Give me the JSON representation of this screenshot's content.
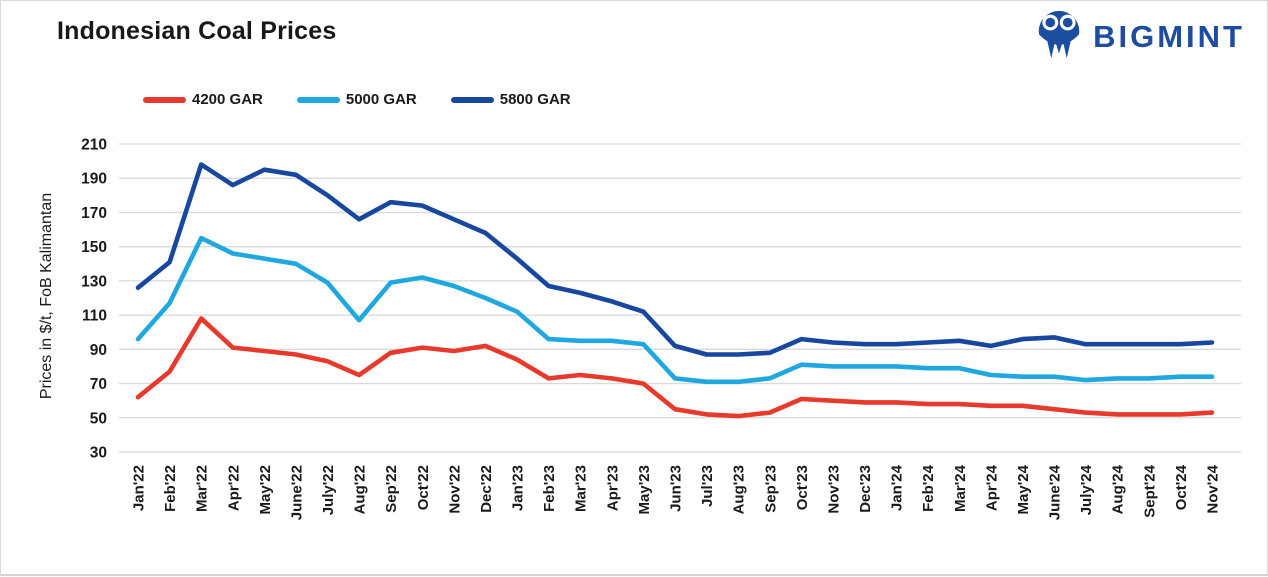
{
  "header": {
    "brand_label": "BIGMINT"
  },
  "colors": {
    "brand_blue": "#1C4DA1",
    "gridline": "#d9d9d9",
    "text": "#1a1a1a"
  },
  "chart_data": {
    "type": "line",
    "title": "Indonesian Coal Prices",
    "xlabel": "",
    "ylabel": "Prices in $/t, FoB Kalimantan",
    "ylim": [
      30,
      210
    ],
    "yticks": [
      210,
      190,
      170,
      150,
      130,
      110,
      90,
      70,
      50,
      30
    ],
    "grid": "horizontal",
    "legend_position": "top-left",
    "categories": [
      "Jan'22",
      "Feb'22",
      "Mar'22",
      "Apr'22",
      "May'22",
      "June'22",
      "July'22",
      "Aug'22",
      "Sep'22",
      "Oct'22",
      "Nov'22",
      "Dec'22",
      "Jan'23",
      "Feb'23",
      "Mar'23",
      "Apr'23",
      "May'23",
      "Jun'23",
      "Jul'23",
      "Aug'23",
      "Sep'23",
      "Oct'23",
      "Nov'23",
      "Dec'23",
      "Jan'24",
      "Feb'24",
      "Mar'24",
      "Apr'24",
      "May'24",
      "June'24",
      "July'24",
      "Aug'24",
      "Sept'24",
      "Oct'24",
      "Nov'24"
    ],
    "series": [
      {
        "name": "4200 GAR",
        "color": "#E8392D",
        "values": [
          62,
          77,
          108,
          91,
          89,
          87,
          83,
          75,
          88,
          91,
          89,
          92,
          84,
          73,
          75,
          73,
          70,
          55,
          52,
          51,
          53,
          61,
          60,
          59,
          59,
          58,
          58,
          57,
          57,
          55,
          53,
          52,
          52,
          52,
          53
        ]
      },
      {
        "name": "5000 GAR",
        "color": "#1FA8E0",
        "values": [
          96,
          117,
          155,
          146,
          143,
          140,
          129,
          107,
          129,
          132,
          127,
          120,
          112,
          96,
          95,
          95,
          93,
          73,
          71,
          71,
          73,
          81,
          80,
          80,
          80,
          79,
          79,
          75,
          74,
          74,
          72,
          73,
          73,
          74,
          74
        ]
      },
      {
        "name": "5800 GAR",
        "color": "#17479E",
        "values": [
          126,
          141,
          198,
          186,
          195,
          192,
          180,
          166,
          176,
          174,
          166,
          158,
          143,
          127,
          123,
          118,
          112,
          92,
          87,
          87,
          88,
          96,
          94,
          93,
          93,
          94,
          95,
          92,
          96,
          97,
          93,
          93,
          93,
          93,
          94
        ]
      }
    ]
  }
}
